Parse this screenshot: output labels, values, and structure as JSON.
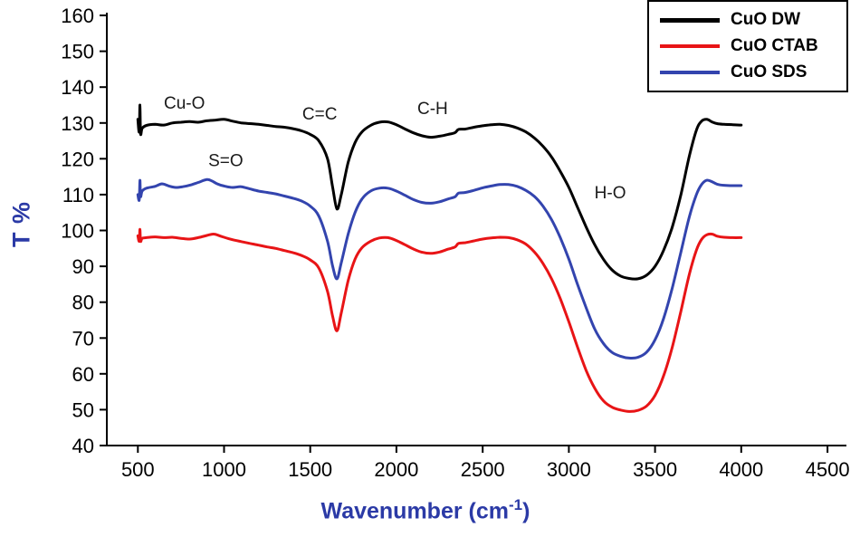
{
  "figure": {
    "background": "#ffffff",
    "axis_color": "#000000",
    "axis_label_color": "#2b3aa6",
    "tick_label_color": "#000000",
    "annotation_color": "#1a1a1a"
  },
  "chart_data": {
    "type": "line",
    "title": "",
    "xlabel": "Wavenumber (cm⁻¹)",
    "xlabel_main": "Wavenumber (cm",
    "xlabel_sup": "-1",
    "xlabel_close": ")",
    "ylabel": "T %",
    "xlim": [
      320,
      4610
    ],
    "ylim": [
      40,
      160
    ],
    "x_ticks": [
      500,
      1000,
      1500,
      2000,
      2500,
      3000,
      3500,
      4000,
      4500
    ],
    "y_ticks": [
      40,
      50,
      60,
      70,
      80,
      90,
      100,
      110,
      120,
      130,
      140,
      150,
      160
    ],
    "grid": false,
    "legend": {
      "position": "top-right",
      "items": [
        {
          "label": "CuO DW",
          "color": "#000000",
          "thickness": 5
        },
        {
          "label": "CuO CTAB",
          "color": "#e81416",
          "thickness": 4
        },
        {
          "label": "CuO SDS",
          "color": "#3344ae",
          "thickness": 4
        }
      ]
    },
    "annotations": [
      {
        "text": "Cu-O",
        "x": 770,
        "y": 135.5
      },
      {
        "text": "S=O",
        "x": 1010,
        "y": 119.5
      },
      {
        "text": "C=C",
        "x": 1555,
        "y": 132.5
      },
      {
        "text": "C-H",
        "x": 2210,
        "y": 134.0
      },
      {
        "text": "H-O",
        "x": 3240,
        "y": 110.5
      }
    ],
    "series": [
      {
        "name": "CuO DW",
        "color": "#000000",
        "width": 3,
        "points": [
          [
            500,
            131
          ],
          [
            508,
            127.5
          ],
          [
            512,
            135
          ],
          [
            516,
            127
          ],
          [
            525,
            128.5
          ],
          [
            550,
            129.3
          ],
          [
            600,
            129.6
          ],
          [
            650,
            129.4
          ],
          [
            700,
            130
          ],
          [
            750,
            130.2
          ],
          [
            800,
            130.4
          ],
          [
            850,
            130.2
          ],
          [
            900,
            130.6
          ],
          [
            950,
            130.8
          ],
          [
            1000,
            131
          ],
          [
            1050,
            130.5
          ],
          [
            1100,
            130
          ],
          [
            1150,
            129.8
          ],
          [
            1200,
            129.6
          ],
          [
            1250,
            129.3
          ],
          [
            1300,
            129
          ],
          [
            1350,
            128.8
          ],
          [
            1400,
            128.4
          ],
          [
            1450,
            127.8
          ],
          [
            1500,
            126.8
          ],
          [
            1550,
            125
          ],
          [
            1600,
            120
          ],
          [
            1630,
            112
          ],
          [
            1655,
            106
          ],
          [
            1680,
            110
          ],
          [
            1720,
            119
          ],
          [
            1760,
            124.5
          ],
          [
            1800,
            127.5
          ],
          [
            1850,
            129.3
          ],
          [
            1900,
            130.2
          ],
          [
            1950,
            130.3
          ],
          [
            2000,
            129.5
          ],
          [
            2050,
            128.3
          ],
          [
            2100,
            127.2
          ],
          [
            2150,
            126.4
          ],
          [
            2200,
            126
          ],
          [
            2250,
            126.3
          ],
          [
            2300,
            126.8
          ],
          [
            2340,
            127.3
          ],
          [
            2360,
            128.2
          ],
          [
            2400,
            128.3
          ],
          [
            2450,
            128.8
          ],
          [
            2500,
            129.2
          ],
          [
            2550,
            129.5
          ],
          [
            2600,
            129.6
          ],
          [
            2650,
            129.3
          ],
          [
            2700,
            128.6
          ],
          [
            2750,
            127.5
          ],
          [
            2800,
            125.8
          ],
          [
            2850,
            123.5
          ],
          [
            2900,
            120.5
          ],
          [
            2950,
            116.5
          ],
          [
            3000,
            112
          ],
          [
            3050,
            106.5
          ],
          [
            3100,
            101
          ],
          [
            3150,
            96
          ],
          [
            3200,
            92
          ],
          [
            3250,
            89
          ],
          [
            3300,
            87.3
          ],
          [
            3350,
            86.6
          ],
          [
            3400,
            86.5
          ],
          [
            3450,
            87.5
          ],
          [
            3500,
            90
          ],
          [
            3550,
            94.5
          ],
          [
            3600,
            101
          ],
          [
            3650,
            110
          ],
          [
            3700,
            121
          ],
          [
            3740,
            128
          ],
          [
            3770,
            130.5
          ],
          [
            3800,
            131
          ],
          [
            3830,
            130.3
          ],
          [
            3860,
            129.8
          ],
          [
            3900,
            129.6
          ],
          [
            3950,
            129.5
          ],
          [
            4000,
            129.4
          ]
        ]
      },
      {
        "name": "CuO CTAB",
        "color": "#e81416",
        "width": 3,
        "points": [
          [
            500,
            98.5
          ],
          [
            508,
            97
          ],
          [
            512,
            100.3
          ],
          [
            516,
            97
          ],
          [
            525,
            97.8
          ],
          [
            550,
            98
          ],
          [
            600,
            98.2
          ],
          [
            650,
            98
          ],
          [
            700,
            98.1
          ],
          [
            750,
            97.8
          ],
          [
            800,
            97.6
          ],
          [
            850,
            98
          ],
          [
            900,
            98.6
          ],
          [
            940,
            99
          ],
          [
            980,
            98.4
          ],
          [
            1020,
            97.8
          ],
          [
            1060,
            97.3
          ],
          [
            1100,
            96.9
          ],
          [
            1150,
            96.4
          ],
          [
            1200,
            95.9
          ],
          [
            1250,
            95.4
          ],
          [
            1300,
            95
          ],
          [
            1350,
            94.4
          ],
          [
            1400,
            93.8
          ],
          [
            1450,
            93
          ],
          [
            1500,
            91.8
          ],
          [
            1550,
            89.5
          ],
          [
            1600,
            83
          ],
          [
            1630,
            76
          ],
          [
            1655,
            72
          ],
          [
            1680,
            77
          ],
          [
            1720,
            86
          ],
          [
            1760,
            92
          ],
          [
            1800,
            95.2
          ],
          [
            1850,
            97
          ],
          [
            1900,
            97.9
          ],
          [
            1950,
            98
          ],
          [
            2000,
            97.2
          ],
          [
            2050,
            96
          ],
          [
            2100,
            94.8
          ],
          [
            2150,
            93.9
          ],
          [
            2200,
            93.6
          ],
          [
            2250,
            94
          ],
          [
            2300,
            94.8
          ],
          [
            2340,
            95.4
          ],
          [
            2360,
            96.4
          ],
          [
            2400,
            96.6
          ],
          [
            2450,
            97.1
          ],
          [
            2500,
            97.6
          ],
          [
            2550,
            97.9
          ],
          [
            2600,
            98.1
          ],
          [
            2650,
            98
          ],
          [
            2700,
            97.4
          ],
          [
            2750,
            96.2
          ],
          [
            2800,
            94
          ],
          [
            2850,
            90.8
          ],
          [
            2900,
            86.5
          ],
          [
            2950,
            81
          ],
          [
            3000,
            74.5
          ],
          [
            3050,
            67.5
          ],
          [
            3100,
            61
          ],
          [
            3150,
            56
          ],
          [
            3200,
            52.5
          ],
          [
            3250,
            50.7
          ],
          [
            3300,
            49.9
          ],
          [
            3350,
            49.5
          ],
          [
            3400,
            49.8
          ],
          [
            3450,
            51
          ],
          [
            3500,
            54
          ],
          [
            3550,
            59.5
          ],
          [
            3600,
            67.5
          ],
          [
            3650,
            77.5
          ],
          [
            3700,
            88
          ],
          [
            3740,
            94.5
          ],
          [
            3770,
            97.5
          ],
          [
            3800,
            98.8
          ],
          [
            3830,
            99
          ],
          [
            3860,
            98.4
          ],
          [
            3900,
            98.1
          ],
          [
            3950,
            98
          ],
          [
            4000,
            98
          ]
        ]
      },
      {
        "name": "CuO SDS",
        "color": "#3344ae",
        "width": 3,
        "points": [
          [
            500,
            110
          ],
          [
            508,
            108.5
          ],
          [
            512,
            114
          ],
          [
            516,
            109.5
          ],
          [
            525,
            111
          ],
          [
            550,
            111.8
          ],
          [
            600,
            112.3
          ],
          [
            640,
            113
          ],
          [
            680,
            112.4
          ],
          [
            720,
            112
          ],
          [
            760,
            112.2
          ],
          [
            800,
            112.6
          ],
          [
            850,
            113.4
          ],
          [
            900,
            114.2
          ],
          [
            930,
            113.8
          ],
          [
            960,
            113
          ],
          [
            1000,
            112.4
          ],
          [
            1050,
            112
          ],
          [
            1100,
            112.2
          ],
          [
            1150,
            111.6
          ],
          [
            1200,
            111
          ],
          [
            1250,
            110.6
          ],
          [
            1300,
            110.2
          ],
          [
            1350,
            109.6
          ],
          [
            1400,
            109
          ],
          [
            1450,
            108.2
          ],
          [
            1500,
            106.8
          ],
          [
            1550,
            104
          ],
          [
            1600,
            97
          ],
          [
            1630,
            90
          ],
          [
            1655,
            86.5
          ],
          [
            1680,
            91
          ],
          [
            1720,
            99
          ],
          [
            1760,
            105
          ],
          [
            1800,
            108.8
          ],
          [
            1850,
            111
          ],
          [
            1900,
            111.8
          ],
          [
            1950,
            111.8
          ],
          [
            2000,
            111
          ],
          [
            2050,
            109.8
          ],
          [
            2100,
            108.6
          ],
          [
            2150,
            107.8
          ],
          [
            2200,
            107.6
          ],
          [
            2250,
            108
          ],
          [
            2300,
            108.8
          ],
          [
            2340,
            109.4
          ],
          [
            2360,
            110.4
          ],
          [
            2400,
            110.6
          ],
          [
            2450,
            111.2
          ],
          [
            2500,
            111.9
          ],
          [
            2550,
            112.4
          ],
          [
            2600,
            112.8
          ],
          [
            2650,
            112.8
          ],
          [
            2700,
            112.3
          ],
          [
            2750,
            111.2
          ],
          [
            2800,
            109.5
          ],
          [
            2850,
            106.8
          ],
          [
            2900,
            103
          ],
          [
            2950,
            98
          ],
          [
            3000,
            92
          ],
          [
            3050,
            85
          ],
          [
            3100,
            78.5
          ],
          [
            3150,
            72.5
          ],
          [
            3200,
            68.5
          ],
          [
            3250,
            66
          ],
          [
            3300,
            64.9
          ],
          [
            3350,
            64.4
          ],
          [
            3400,
            64.6
          ],
          [
            3450,
            66
          ],
          [
            3500,
            69.5
          ],
          [
            3550,
            75.5
          ],
          [
            3600,
            84
          ],
          [
            3650,
            94
          ],
          [
            3700,
            104
          ],
          [
            3740,
            110
          ],
          [
            3770,
            112.8
          ],
          [
            3800,
            114
          ],
          [
            3830,
            113.6
          ],
          [
            3860,
            112.9
          ],
          [
            3900,
            112.6
          ],
          [
            3950,
            112.5
          ],
          [
            4000,
            112.5
          ]
        ]
      }
    ]
  }
}
